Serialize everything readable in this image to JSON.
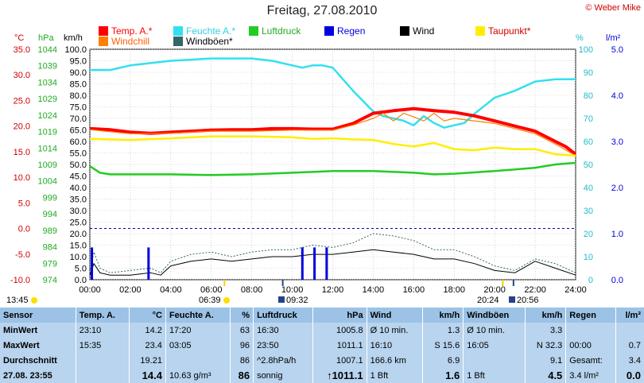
{
  "header": {
    "title": "Freitag, 27.08.2010",
    "copyright": "© Weber Mike"
  },
  "legend": [
    {
      "label": "Temp. A.*",
      "color": "#ff0000"
    },
    {
      "label": "Feuchte A.*",
      "color": "#33e0f0"
    },
    {
      "label": "Luftdruck",
      "color": "#22cc22"
    },
    {
      "label": "Regen",
      "color": "#0000dd"
    },
    {
      "label": "Wind",
      "color": "#000000"
    },
    {
      "label": "Taupunkt*",
      "color": "#ffee00"
    },
    {
      "label": "Windchill",
      "color": "#ff8000"
    },
    {
      "label": "Windböen*",
      "color": "#336666"
    }
  ],
  "axis_units": {
    "temp": "°C",
    "press": "hPa",
    "wind": "km/h",
    "hum": "%",
    "rain": "l/m²"
  },
  "chart_data": {
    "type": "line",
    "title": "Freitag, 27.08.2010",
    "x_ticks": [
      "00:00",
      "02:00",
      "04:00",
      "06:00",
      "08:00",
      "10:00",
      "12:00",
      "14:00",
      "16:00",
      "18:00",
      "20:00",
      "22:00",
      "24:00"
    ],
    "x_range_hours": [
      0,
      24
    ],
    "y_axes": {
      "temp": {
        "label": "°C",
        "range": [
          -10,
          35
        ],
        "ticks": [
          "35.0",
          "30.0",
          "25.0",
          "20.0",
          "15.0",
          "10.0",
          "5.0",
          "0.0",
          "-5.0",
          "-10.0"
        ],
        "tick_values": [
          35,
          30,
          25,
          20,
          15,
          10,
          5,
          0,
          -5,
          -10
        ]
      },
      "press": {
        "label": "hPa",
        "range": [
          974,
          1044
        ],
        "ticks": [
          "1044",
          "1039",
          "1034",
          "1029",
          "1024",
          "1019",
          "1014",
          "1009",
          "1004",
          "999",
          "994",
          "989",
          "984",
          "979",
          "974"
        ]
      },
      "wind": {
        "label": "km/h",
        "range": [
          0,
          100
        ],
        "ticks": [
          "100.0",
          "95.0",
          "90.0",
          "85.0",
          "80.0",
          "75.0",
          "70.0",
          "65.0",
          "60.0",
          "55.0",
          "50.0",
          "45.0",
          "40.0",
          "35.0",
          "30.0",
          "25.0",
          "20.0",
          "15.0",
          "10.0",
          "5.0",
          "0.0"
        ]
      },
      "hum": {
        "label": "%",
        "range": [
          0,
          100
        ],
        "ticks": [
          "100",
          "90",
          "80",
          "70",
          "60",
          "50",
          "40",
          "30",
          "20",
          "10",
          "0"
        ]
      },
      "rain": {
        "label": "l/m²",
        "range": [
          0,
          5
        ],
        "ticks": [
          "5.0",
          "4.0",
          "3.0",
          "2.0",
          "1.0",
          "0.0"
        ]
      }
    },
    "series": [
      {
        "name": "Feuchte A.*",
        "color": "#33e0f0",
        "axis": "hum",
        "x": [
          0,
          1,
          2,
          3,
          4,
          5,
          6,
          7,
          8,
          9,
          10,
          10.5,
          11,
          11.5,
          12,
          13,
          14,
          14.5,
          15,
          15.5,
          16,
          16.5,
          17,
          17.5,
          18,
          18.5,
          19,
          20,
          21,
          22,
          23,
          24
        ],
        "y": [
          91,
          91,
          93,
          94,
          95,
          95.5,
          96,
          96,
          96,
          95,
          93,
          92,
          93,
          93,
          92,
          82,
          73,
          71,
          70,
          69,
          67,
          71,
          68,
          66,
          67,
          68,
          72,
          79,
          82,
          86,
          87,
          87
        ]
      },
      {
        "name": "Temp. A.*",
        "color": "#ff0000",
        "axis": "temp",
        "x": [
          0,
          1,
          2,
          3,
          4,
          5,
          6,
          7,
          8,
          9,
          10,
          11,
          12,
          13,
          14,
          15,
          16,
          17,
          18,
          19,
          20,
          21,
          22,
          23,
          23.5,
          24
        ],
        "y": [
          19.5,
          19.3,
          18.8,
          18.6,
          18.8,
          19.0,
          19.2,
          19.3,
          19.3,
          19.5,
          19.5,
          19.4,
          19.4,
          20.5,
          22.5,
          23.0,
          23.4,
          23.0,
          22.7,
          22.0,
          21.0,
          20.0,
          19.0,
          17.0,
          16.0,
          14.5
        ]
      },
      {
        "name": "Windchill",
        "color": "#ff8000",
        "axis": "temp",
        "x": [
          0,
          2,
          4,
          6,
          8,
          10,
          12,
          13,
          14,
          14.5,
          15,
          15.5,
          16,
          16.5,
          17,
          17.5,
          18,
          20,
          22,
          23,
          24
        ],
        "y": [
          19.3,
          18.5,
          18.6,
          19.0,
          19.0,
          19.2,
          19.2,
          20.2,
          21.5,
          22.5,
          21.0,
          22.5,
          21.8,
          21.0,
          22.5,
          21.0,
          21.5,
          20.5,
          18.5,
          16.5,
          14.2
        ]
      },
      {
        "name": "Taupunkt*",
        "color": "#ffee00",
        "axis": "temp",
        "x": [
          0,
          2,
          4,
          6,
          8,
          10,
          11,
          12,
          13,
          14,
          15,
          16,
          17,
          18,
          19,
          20,
          21,
          22,
          23,
          24
        ],
        "y": [
          17.5,
          17.3,
          17.6,
          18.0,
          18.0,
          17.8,
          17.5,
          17.6,
          17.4,
          17.3,
          16.5,
          16.0,
          16.7,
          15.5,
          15.3,
          15.8,
          15.5,
          15.5,
          14.5,
          14.2
        ]
      },
      {
        "name": "Luftdruck",
        "color": "#22cc22",
        "axis": "press",
        "x": [
          0,
          0.5,
          1,
          2,
          4,
          6,
          8,
          10,
          12,
          14,
          16,
          17,
          18,
          20,
          21,
          22,
          23,
          24
        ],
        "y": [
          1008.5,
          1006.5,
          1006,
          1006,
          1006,
          1005.8,
          1006,
          1006.5,
          1007,
          1007,
          1006.5,
          1006,
          1006.2,
          1007,
          1007.5,
          1008,
          1009,
          1009.5
        ]
      },
      {
        "name": "Windböen*",
        "color": "#336666",
        "axis": "wind",
        "x": [
          0,
          0.2,
          0.5,
          1,
          2,
          3,
          3.5,
          4,
          5,
          6,
          7,
          8,
          9,
          10,
          11,
          12,
          13,
          14,
          15,
          16,
          17,
          18,
          19,
          20,
          21,
          22,
          23,
          24
        ],
        "y": [
          3,
          12,
          5,
          3,
          4,
          5,
          3,
          8,
          11,
          12,
          10,
          12,
          13,
          13,
          15,
          14,
          16,
          20,
          19,
          17,
          13,
          13,
          10,
          6,
          4,
          9,
          7,
          3
        ]
      },
      {
        "name": "Wind",
        "color": "#000000",
        "axis": "wind",
        "x": [
          0,
          0.2,
          0.5,
          1,
          2,
          3,
          3.5,
          4,
          5,
          6,
          7,
          8,
          9,
          10,
          11,
          12,
          13,
          14,
          15,
          16,
          17,
          18,
          19,
          20,
          21,
          22,
          23,
          24
        ],
        "y": [
          2,
          7,
          3,
          2,
          2,
          3,
          2,
          6,
          8,
          9,
          8,
          9,
          10,
          10,
          11,
          11,
          12,
          13,
          12,
          11,
          9,
          9,
          7,
          4,
          3,
          8,
          5,
          2
        ]
      },
      {
        "name": "Regen",
        "color": "#0000dd",
        "axis": "rain",
        "type": "bar",
        "x": [
          0.1,
          2.9,
          10.5,
          11.1,
          11.7
        ],
        "y": [
          0.7,
          0.7,
          0.7,
          0.7,
          0.7
        ]
      }
    ]
  },
  "sun": {
    "left_edge": "13:45",
    "sunrise": "06:39",
    "sunset": "20:24",
    "moon_set": "09:32",
    "moon_rise": "20:56"
  },
  "stats": {
    "headers": [
      "Sensor",
      "Temp. A.",
      "°C",
      "Feuchte A.",
      "%",
      "Luftdruck",
      "hPa",
      "Wind",
      "km/h",
      "Windböen",
      "km/h",
      "Regen",
      "l/m²"
    ],
    "rows": [
      [
        "MinWert",
        "23:10",
        "14.2",
        "17:20",
        "63",
        "16:30",
        "1005.8",
        "Ø 10 min.",
        "1.3",
        "Ø 10 min.",
        "3.3",
        "",
        ""
      ],
      [
        "MaxWert",
        "15:35",
        "23.4",
        "03:05",
        "96",
        "23:50",
        "1011.1",
        "16:10",
        "S 15.6",
        "16:05",
        "N 32.3",
        "00:00",
        "0.7"
      ],
      [
        "Durchschnitt",
        "",
        "19.21",
        "",
        "86",
        "^2.8hPa/h",
        "1007.1",
        "166.6 km",
        "6.9",
        "",
        "9.1",
        "Gesamt:",
        "3.4"
      ],
      [
        "27.08. 23:55",
        "",
        "14.4",
        "10.63 g/m³",
        "86",
        "sonnig",
        "↑1011.1",
        "1 Bft",
        "1.6",
        "1 Bft",
        "4.5",
        "3.4 l/m²",
        "0.0"
      ]
    ]
  }
}
